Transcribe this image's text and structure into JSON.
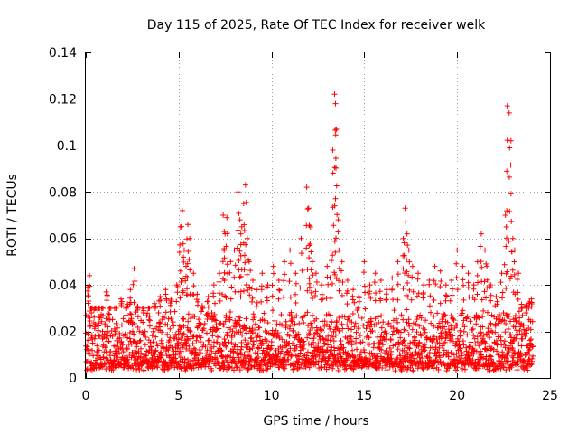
{
  "chart_data": {
    "type": "scatter",
    "title": "Day 115 of 2025, Rate Of TEC Index for receiver welk",
    "xlabel": "GPS time / hours",
    "ylabel": "ROTI / TECUs",
    "xlim": [
      0,
      25
    ],
    "ylim": [
      0,
      0.14
    ],
    "x_ticks": [
      0,
      5,
      10,
      15,
      20,
      25
    ],
    "x_tick_labels": [
      "0",
      "5",
      "10",
      "15",
      "20",
      "25"
    ],
    "y_ticks": [
      0,
      0.02,
      0.04,
      0.06,
      0.08,
      0.1,
      0.12,
      0.14
    ],
    "y_tick_labels": [
      "0",
      "0.02",
      "0.04",
      "0.06",
      "0.08",
      "0.1",
      "0.12",
      "0.14"
    ],
    "grid": true,
    "marker": "+",
    "color": "#ff0000",
    "series": [
      {
        "name": "ROTI",
        "x": [
          0.1,
          0.2,
          0.3,
          0.5,
          0.7,
          0.9,
          1.1,
          1.3,
          1.6,
          1.9,
          2.2,
          2.4,
          2.6,
          2.8,
          3.1,
          3.4,
          3.7,
          4.0,
          4.3,
          4.6,
          4.9,
          5.1,
          5.2,
          5.3,
          5.4,
          5.5,
          5.6,
          5.8,
          6.0,
          6.3,
          6.6,
          6.9,
          7.2,
          7.4,
          7.5,
          7.6,
          7.8,
          8.0,
          8.2,
          8.3,
          8.4,
          8.5,
          8.6,
          8.7,
          8.8,
          9.0,
          9.2,
          9.5,
          9.8,
          10.1,
          10.4,
          10.7,
          11.0,
          11.3,
          11.6,
          11.9,
          12.0,
          12.1,
          12.2,
          12.4,
          12.7,
          13.0,
          13.2,
          13.3,
          13.4,
          13.45,
          13.5,
          13.6,
          13.8,
          14.1,
          14.4,
          14.7,
          15.0,
          15.3,
          15.6,
          15.9,
          16.2,
          16.5,
          16.8,
          17.1,
          17.2,
          17.3,
          17.4,
          17.6,
          17.9,
          18.2,
          18.5,
          18.8,
          19.1,
          19.4,
          19.7,
          20.0,
          20.3,
          20.6,
          20.9,
          21.1,
          21.3,
          21.5,
          21.6,
          21.8,
          22.1,
          22.4,
          22.6,
          22.7,
          22.8,
          22.9,
          23.0,
          23.1,
          23.3,
          23.5,
          23.7,
          23.9,
          24.0
        ],
        "y": [
          0.039,
          0.044,
          0.028,
          0.022,
          0.018,
          0.02,
          0.037,
          0.025,
          0.02,
          0.034,
          0.03,
          0.038,
          0.047,
          0.03,
          0.028,
          0.025,
          0.032,
          0.035,
          0.038,
          0.033,
          0.04,
          0.065,
          0.072,
          0.055,
          0.048,
          0.066,
          0.06,
          0.045,
          0.036,
          0.03,
          0.035,
          0.04,
          0.045,
          0.07,
          0.062,
          0.069,
          0.05,
          0.055,
          0.08,
          0.068,
          0.065,
          0.075,
          0.083,
          0.06,
          0.05,
          0.042,
          0.038,
          0.045,
          0.04,
          0.048,
          0.042,
          0.05,
          0.055,
          0.045,
          0.06,
          0.082,
          0.073,
          0.065,
          0.05,
          0.045,
          0.04,
          0.048,
          0.055,
          0.098,
          0.122,
          0.118,
          0.107,
          0.068,
          0.05,
          0.042,
          0.038,
          0.035,
          0.05,
          0.04,
          0.045,
          0.042,
          0.038,
          0.043,
          0.05,
          0.06,
          0.073,
          0.062,
          0.055,
          0.048,
          0.045,
          0.04,
          0.042,
          0.048,
          0.046,
          0.04,
          0.042,
          0.055,
          0.048,
          0.045,
          0.04,
          0.05,
          0.062,
          0.055,
          0.048,
          0.04,
          0.035,
          0.045,
          0.07,
          0.117,
          0.114,
          0.102,
          0.06,
          0.055,
          0.045,
          0.03,
          0.028,
          0.032,
          0.034
        ]
      }
    ],
    "background_band": {
      "description": "dense scatter of ROTI values between roughly 0.005 and 0.03 TECU/s throughout the whole day",
      "x_range": [
        0,
        24.1
      ],
      "y_range": [
        0.003,
        0.03
      ]
    }
  }
}
